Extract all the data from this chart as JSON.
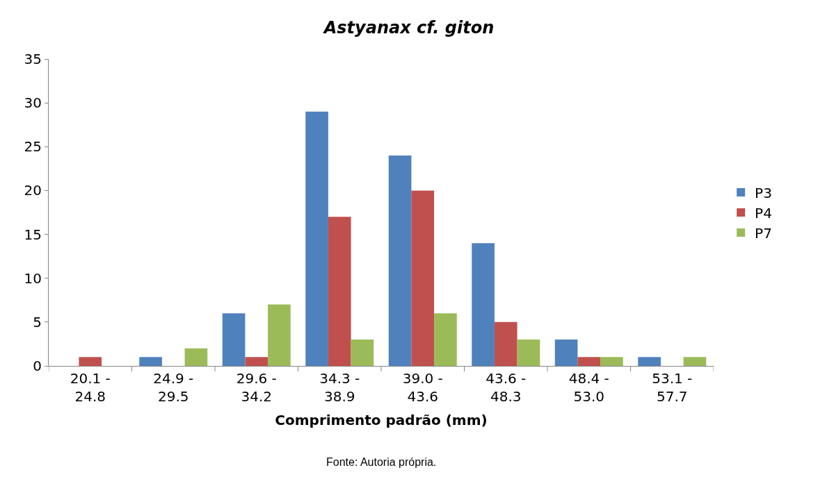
{
  "chart_data": {
    "type": "bar",
    "title": "Astyanax cf. giton",
    "xlabel": "Comprimento padrão (mm)",
    "annotations": [
      "Fonte: Autoria própria."
    ],
    "categories": [
      "20.1 -\n24.8",
      "24.9 -\n29.5",
      "29.6 -\n34.2",
      "34.3 -\n38.9",
      "39.0 -\n43.6",
      "43.6 -\n48.3",
      "48.4 -\n53.0",
      "53.1 -\n57.7"
    ],
    "series": [
      {
        "name": "P3",
        "color": "#4f81bd",
        "values": [
          0,
          1,
          6,
          29,
          24,
          14,
          3,
          1
        ]
      },
      {
        "name": "P4",
        "color": "#c0504d",
        "values": [
          1,
          0,
          1,
          17,
          20,
          5,
          1,
          0
        ]
      },
      {
        "name": "P7",
        "color": "#9bbb59",
        "values": [
          0,
          2,
          7,
          3,
          6,
          3,
          1,
          1
        ]
      }
    ],
    "ylim": [
      0,
      35
    ],
    "yticks": [
      0,
      5,
      10,
      15,
      20,
      25,
      30,
      35
    ],
    "legend": "right"
  }
}
